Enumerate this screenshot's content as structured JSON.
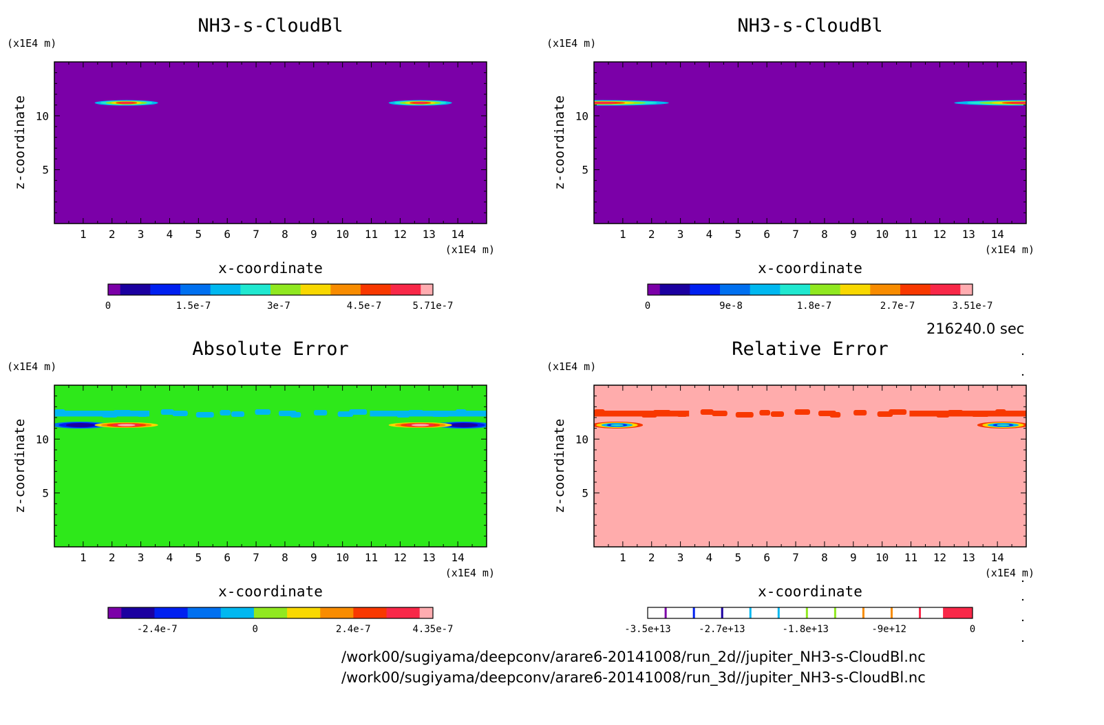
{
  "time_label": "216240.0 sec",
  "paths": [
    "/work00/sugiyama/deepconv/arare6-20141008/run_2d//jupiter_NH3-s-CloudBl.nc",
    "/work00/sugiyama/deepconv/arare6-20141008/run_3d//jupiter_NH3-s-CloudBl.nc"
  ],
  "colors": {
    "ramp": [
      "#7b00a8",
      "#1b00a0",
      "#0020f0",
      "#0070f0",
      "#00b8f0",
      "#20e8d0",
      "#90e820",
      "#f8d800",
      "#f88c00",
      "#f83800",
      "#f82848",
      "#ffacb0"
    ],
    "bg_purple": "#7b00a8",
    "bg_green": "#2ee81a",
    "bg_pink": "#ffacac"
  },
  "chart_data": [
    {
      "type": "heatmap",
      "title": "NH3-s-CloudBl",
      "xlabel": "x-coordinate",
      "ylabel": "z-coordinate",
      "x_unit": "(x1E4 m)",
      "y_unit": "(x1E4 m)",
      "xlim": [
        0,
        15
      ],
      "ylim": [
        0,
        15
      ],
      "x_ticks": [
        1,
        2,
        3,
        4,
        5,
        6,
        7,
        8,
        9,
        10,
        11,
        12,
        13,
        14
      ],
      "y_ticks": [
        5,
        10
      ],
      "background": "#7b00a8",
      "colorbar": {
        "levels": 12,
        "labels": [
          "0",
          "1.5e-7",
          "3e-7",
          "4.5e-7",
          "5.71e-7"
        ],
        "label_values": [
          0,
          1.5e-07,
          3e-07,
          4.5e-07,
          5.71e-07
        ],
        "min": 0,
        "max": 5.71e-07
      },
      "features": [
        {
          "kind": "cloud",
          "x_center": 2.5,
          "z": 11.2,
          "half_width": 1.1,
          "peak": 5.71e-07
        },
        {
          "kind": "cloud",
          "x_center": 12.7,
          "z": 11.2,
          "half_width": 1.1,
          "peak": 5.71e-07
        }
      ]
    },
    {
      "type": "heatmap",
      "title": "NH3-s-CloudBl",
      "xlabel": "x-coordinate",
      "ylabel": "z-coordinate",
      "x_unit": "(x1E4 m)",
      "y_unit": "(x1E4 m)",
      "xlim": [
        0,
        15
      ],
      "ylim": [
        0,
        15
      ],
      "x_ticks": [
        1,
        2,
        3,
        4,
        5,
        6,
        7,
        8,
        9,
        10,
        11,
        12,
        13,
        14
      ],
      "y_ticks": [
        5,
        10
      ],
      "background": "#7b00a8",
      "colorbar": {
        "levels": 12,
        "labels": [
          "0",
          "9e-8",
          "1.8e-7",
          "2.7e-7",
          "3.51e-7"
        ],
        "label_values": [
          0,
          9e-08,
          1.8e-07,
          2.7e-07,
          3.51e-07
        ],
        "min": 0,
        "max": 3.51e-07
      },
      "features": [
        {
          "kind": "cloud",
          "x_center": 0.3,
          "z": 11.2,
          "half_width": 2.3,
          "peak": 3.51e-07
        },
        {
          "kind": "cloud",
          "x_center": 15.0,
          "z": 11.2,
          "half_width": 2.5,
          "peak": 3.51e-07
        }
      ]
    },
    {
      "type": "heatmap",
      "title": "Absolute Error",
      "xlabel": "x-coordinate",
      "ylabel": "z-coordinate",
      "x_unit": "(x1E4 m)",
      "y_unit": "(x1E4 m)",
      "xlim": [
        0,
        15
      ],
      "ylim": [
        0,
        15
      ],
      "x_ticks": [
        1,
        2,
        3,
        4,
        5,
        6,
        7,
        8,
        9,
        10,
        11,
        12,
        13,
        14
      ],
      "y_ticks": [
        5,
        10
      ],
      "background": "#2ee81a",
      "colorbar": {
        "levels": 10,
        "labels": [
          "-2.4e-7",
          "0",
          "2.4e-7",
          "4.35e-7"
        ],
        "label_values": [
          -2.4e-07,
          0,
          2.4e-07,
          4.35e-07
        ],
        "min": -3.6e-07,
        "max": 4.35e-07
      },
      "features": [
        {
          "kind": "band",
          "z": 12.3,
          "value": -1.2e-07
        },
        {
          "kind": "negative",
          "x_center": 0.9,
          "z": 11.3,
          "half_width": 1.0,
          "peak": -3.6e-07
        },
        {
          "kind": "negative",
          "x_center": 14.2,
          "z": 11.3,
          "half_width": 1.0,
          "peak": -3.6e-07
        },
        {
          "kind": "positive",
          "x_center": 2.5,
          "z": 11.3,
          "half_width": 1.1,
          "peak": 4.35e-07
        },
        {
          "kind": "positive",
          "x_center": 12.7,
          "z": 11.3,
          "half_width": 1.1,
          "peak": 4.35e-07
        }
      ]
    },
    {
      "type": "heatmap",
      "title": "Relative Error",
      "xlabel": "x-coordinate",
      "ylabel": "z-coordinate",
      "x_unit": "(x1E4 m)",
      "y_unit": "(x1E4 m)",
      "xlim": [
        0,
        15
      ],
      "ylim": [
        0,
        15
      ],
      "x_ticks": [
        1,
        2,
        3,
        4,
        5,
        6,
        7,
        8,
        9,
        10,
        11,
        12,
        13,
        14
      ],
      "y_ticks": [
        5,
        10
      ],
      "background": "#ffacac",
      "colorbar": {
        "levels": 12,
        "labels": [
          "-3.5e+13",
          "-2.7e+13",
          "-1.8e+13",
          "-9e+12",
          "0"
        ],
        "label_values": [
          -35000000000000.0,
          -27000000000000.0,
          -18000000000000.0,
          -9000000000000.0,
          0
        ],
        "min": -35000000000000.0,
        "max": 0,
        "style": "lines"
      },
      "features": [
        {
          "kind": "band",
          "z": 12.3,
          "value": -1000000000000.0
        },
        {
          "kind": "edge",
          "x_center": 0.8,
          "z": 11.3,
          "half_width": 0.9
        },
        {
          "kind": "edge",
          "x_center": 14.2,
          "z": 11.3,
          "half_width": 0.9
        }
      ]
    }
  ]
}
